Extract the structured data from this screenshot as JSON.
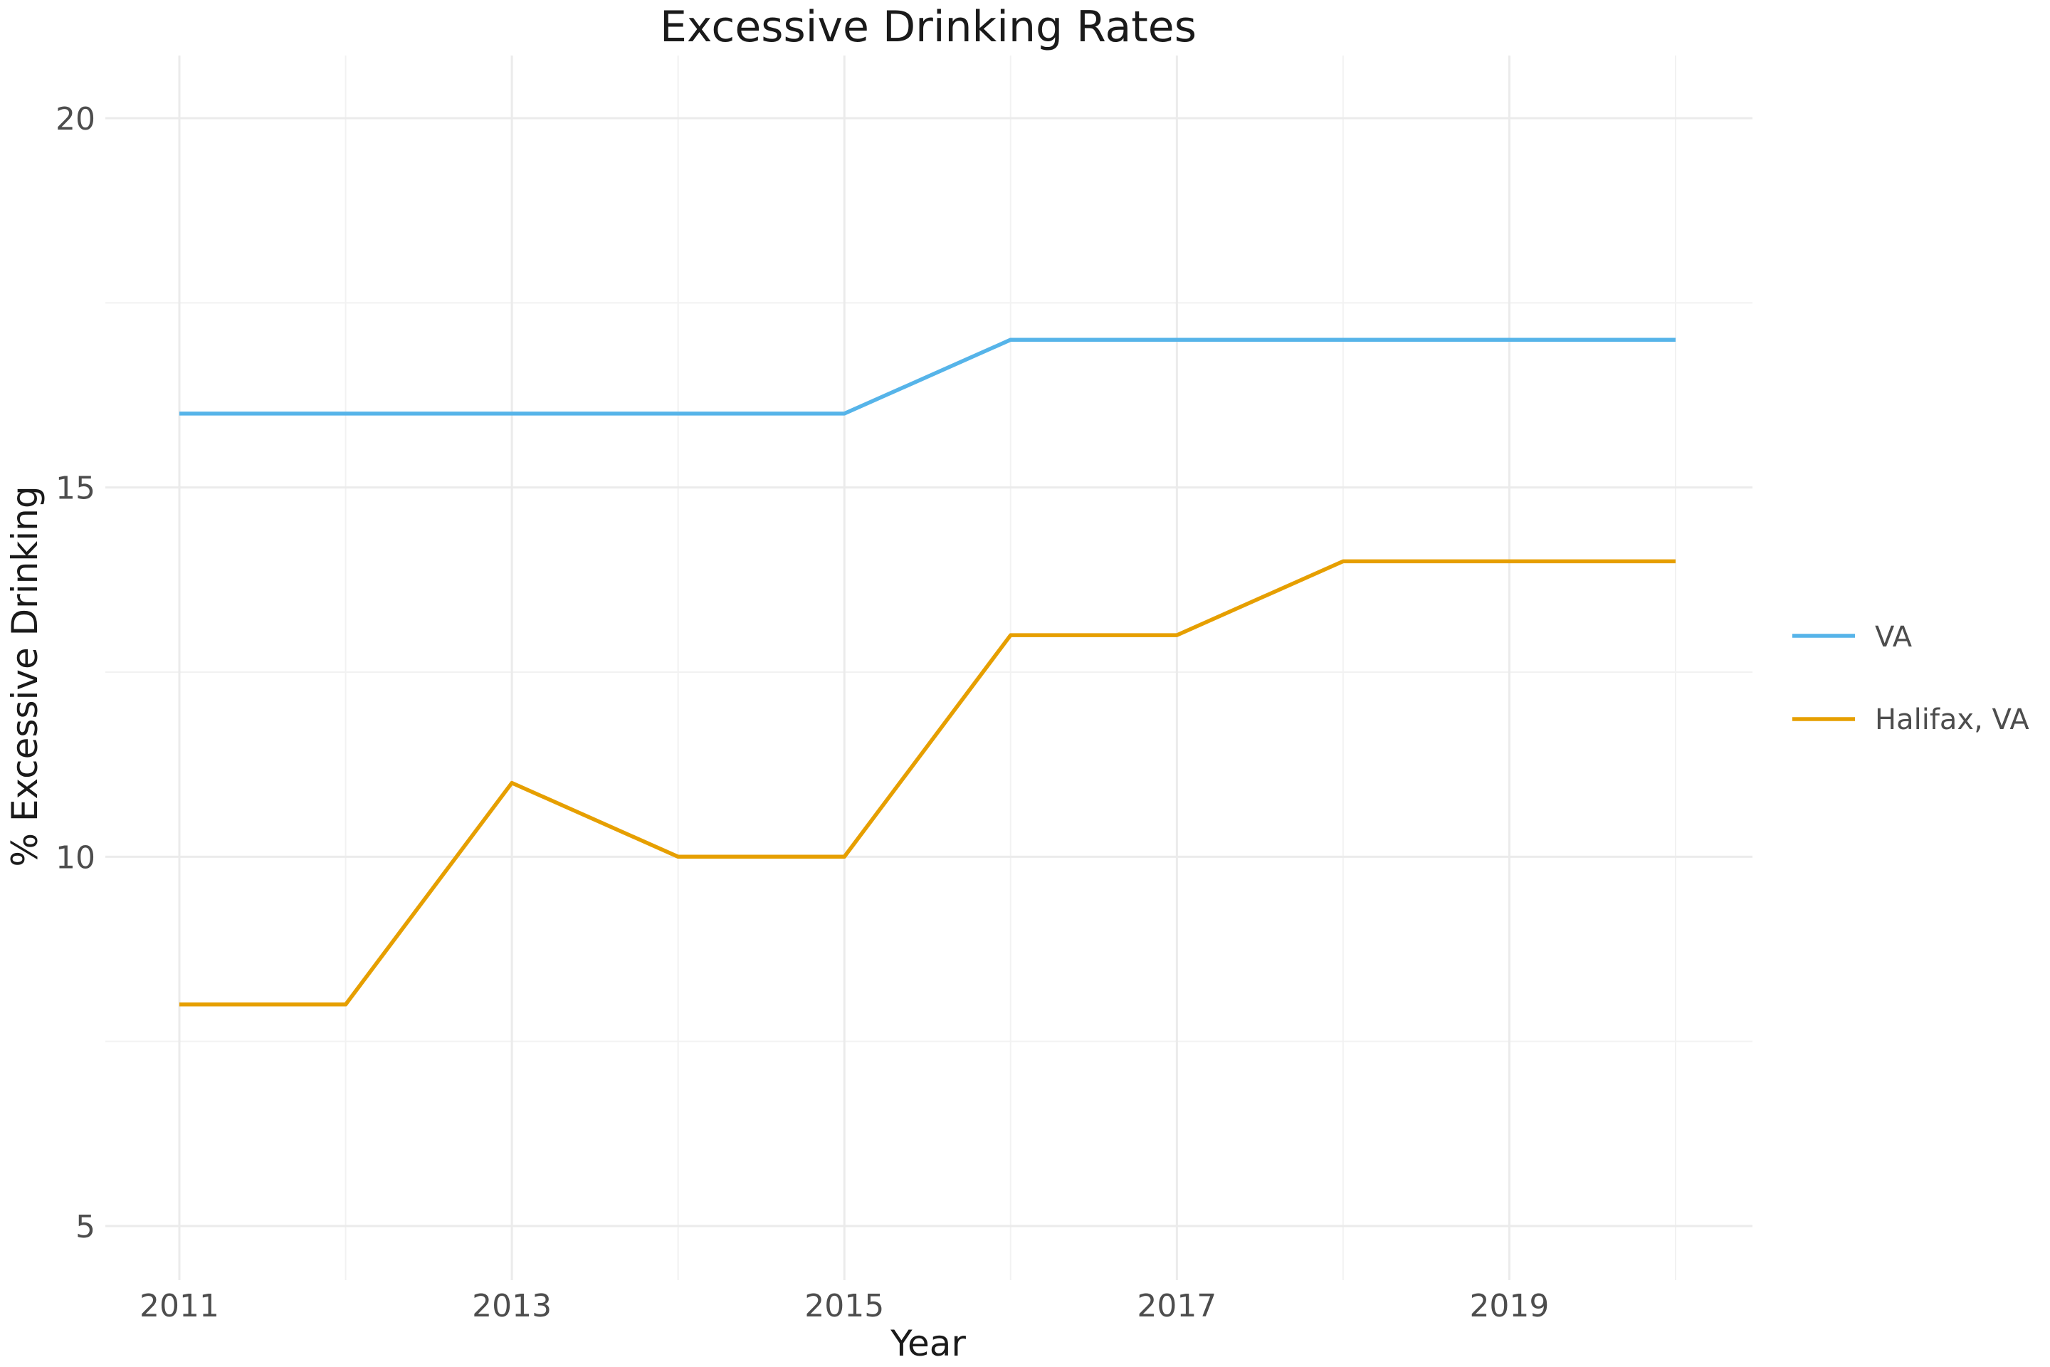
{
  "chart_data": {
    "type": "line",
    "title": "Excessive Drinking Rates",
    "xlabel": "Year",
    "ylabel": "% Excessive Drinking",
    "x": [
      2011,
      2012,
      2013,
      2014,
      2015,
      2016,
      2017,
      2018,
      2019,
      2020
    ],
    "x_ticks": [
      "2011",
      "2013",
      "2015",
      "2017",
      "2019"
    ],
    "y_ticks": [
      "5",
      "10",
      "15",
      "20"
    ],
    "xlim": [
      2011,
      2020
    ],
    "ylim": [
      5,
      20
    ],
    "grid": true,
    "legend_position": "right",
    "series": [
      {
        "name": "VA",
        "color": "#56B4E9",
        "values": [
          16,
          16,
          16,
          16,
          16,
          17,
          17,
          17,
          17,
          17
        ]
      },
      {
        "name": "Halifax, VA",
        "color": "#E69F00",
        "values": [
          8,
          8,
          11,
          10,
          10,
          13,
          13,
          14,
          14,
          14
        ]
      }
    ]
  }
}
